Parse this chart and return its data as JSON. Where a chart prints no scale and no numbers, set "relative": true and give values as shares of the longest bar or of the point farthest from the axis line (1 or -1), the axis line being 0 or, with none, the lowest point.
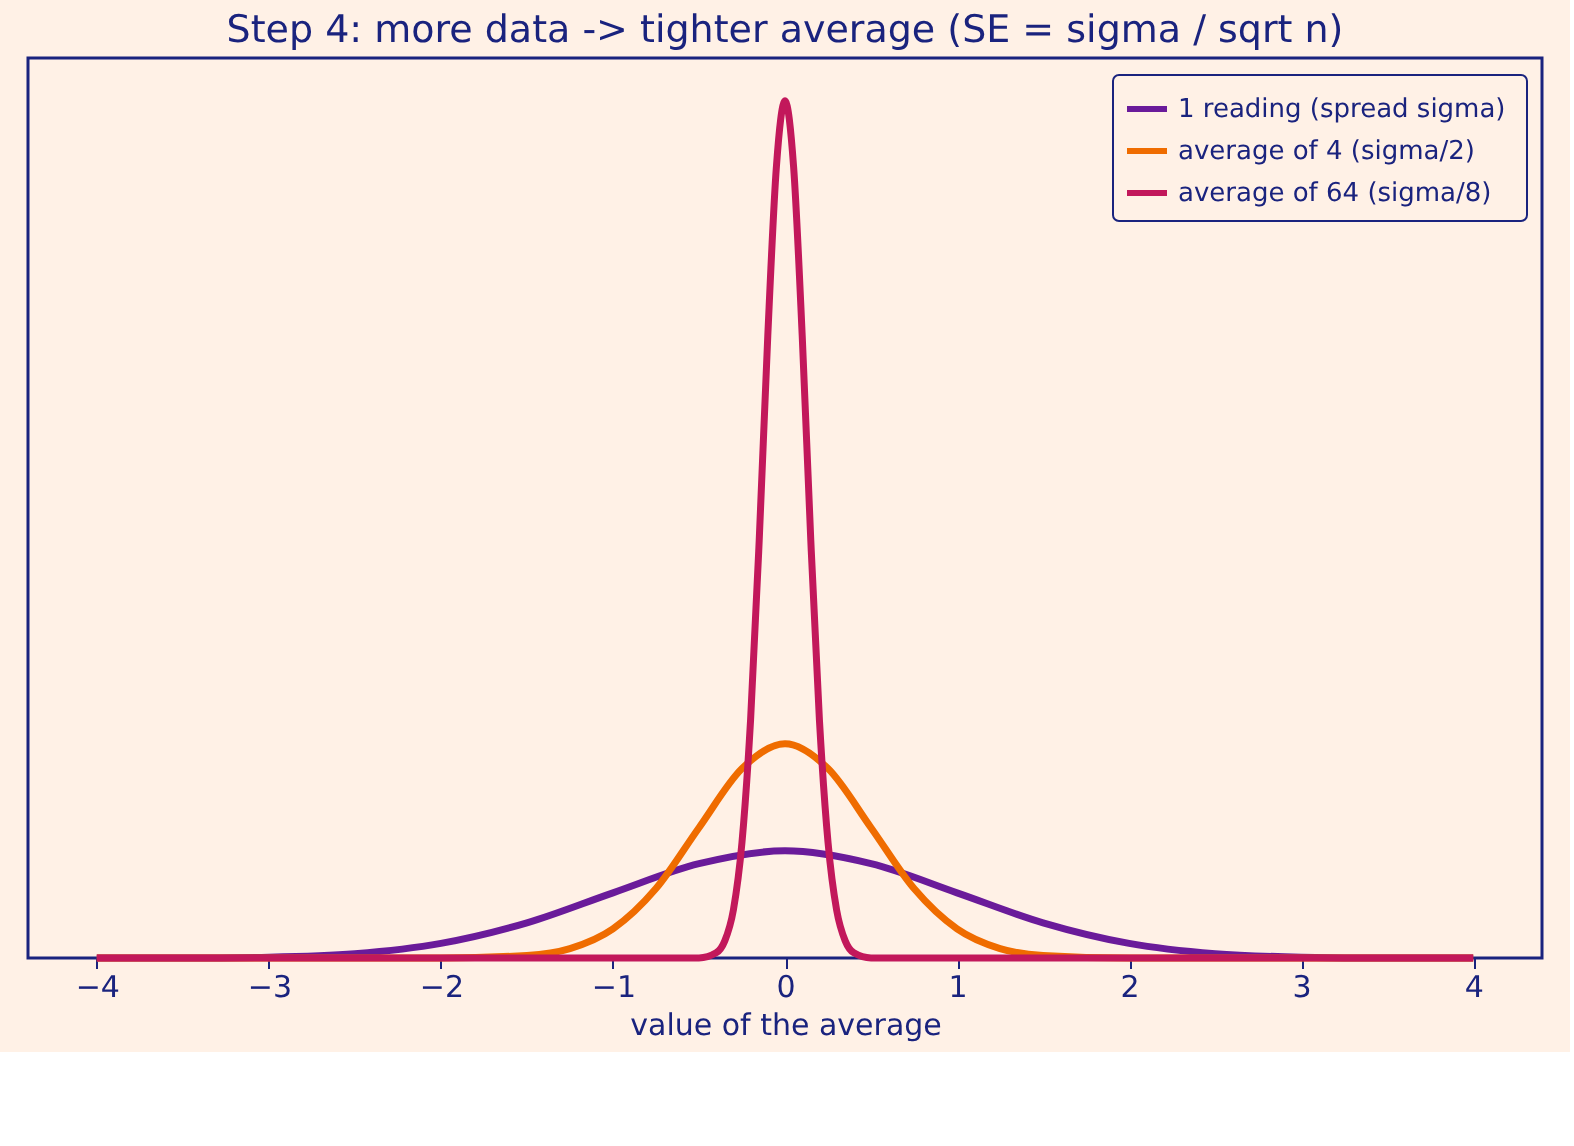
{
  "chart_data": {
    "type": "line",
    "title": "Step 4: more data -> tighter average (SE = sigma / sqrt n)",
    "xlabel": "value of the average",
    "relative": true,
    "xlim": [
      -4.4,
      4.4
    ],
    "xticks": [
      {
        "value": -4,
        "label": "−4"
      },
      {
        "value": -3,
        "label": "−3"
      },
      {
        "value": -2,
        "label": "−2"
      },
      {
        "value": -1,
        "label": "−1"
      },
      0,
      1,
      2,
      3,
      4
    ],
    "grid": false,
    "legend": "top right",
    "marker": "none",
    "line_style": "solid",
    "series": [
      {
        "name": "1 reading  (spread sigma)",
        "color": "#6a1b9a",
        "x": [
          -4,
          -3.5,
          -3,
          -2.5,
          -2,
          -1.5,
          -1,
          -0.5,
          0,
          0.5,
          1,
          1.5,
          2,
          2.5,
          3,
          3.5,
          4
        ],
        "values": [
          0,
          0,
          0.001,
          0.005,
          0.017,
          0.041,
          0.076,
          0.11,
          0.125,
          0.11,
          0.076,
          0.041,
          0.017,
          0.005,
          0.001,
          0,
          0
        ]
      },
      {
        "name": "average of 4  (sigma/2)",
        "color": "#ef6c00",
        "x": [
          -4,
          -2,
          -1.5,
          -1.25,
          -1,
          -0.75,
          -0.5,
          -0.25,
          0,
          0.25,
          0.5,
          0.75,
          1,
          1.25,
          1.5,
          2,
          4
        ],
        "values": [
          0,
          0,
          0.003,
          0.011,
          0.034,
          0.081,
          0.152,
          0.221,
          0.25,
          0.221,
          0.152,
          0.081,
          0.034,
          0.011,
          0.003,
          0,
          0
        ]
      },
      {
        "name": "average of 64  (sigma/8)",
        "color": "#c2185b",
        "x": [
          -4,
          -0.5,
          -0.4,
          -0.35,
          -0.3,
          -0.25,
          -0.2,
          -0.15,
          -0.1,
          -0.05,
          0,
          0.05,
          0.1,
          0.15,
          0.2,
          0.25,
          0.3,
          0.35,
          0.4,
          0.5,
          4
        ],
        "values": [
          0,
          0,
          0.006,
          0.02,
          0.056,
          0.135,
          0.278,
          0.487,
          0.726,
          0.923,
          1,
          0.923,
          0.726,
          0.487,
          0.278,
          0.135,
          0.056,
          0.02,
          0.006,
          0,
          0
        ]
      }
    ]
  }
}
